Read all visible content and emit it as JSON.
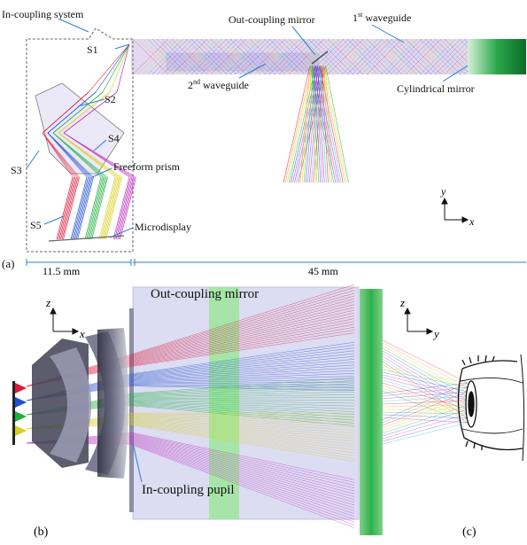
{
  "panel_a": {
    "panel_label": "(a)",
    "labels": {
      "in_coupling_system": "In-coupling system",
      "s1": "S1",
      "s2": "S2",
      "s3": "S3",
      "s4": "S4",
      "s5": "S5",
      "freeform_prism": "Freeform prism",
      "microdisplay": "Microdisplay",
      "out_coupling_mirror": "Out-coupling mirror",
      "first_waveguide_main": "1",
      "first_waveguide_sup": "st",
      "first_waveguide_rest": " waveguide",
      "second_waveguide_main": "2",
      "second_waveguide_sup": "nd",
      "second_waveguide_rest": " waveguide",
      "cylindrical_mirror": "Cylindrical mirror",
      "axis_y": "y",
      "axis_x": "x"
    },
    "dimensions": {
      "in_coupling_width": "11.5 mm",
      "waveguide_length": "45 mm"
    }
  },
  "panel_b": {
    "panel_label": "(b)",
    "labels": {
      "out_coupling_mirror": "Out-coupling mirror",
      "in_coupling_pupil": "In-coupling pupil",
      "axis_z": "z",
      "axis_x": "x"
    }
  },
  "panel_c": {
    "panel_label": "(c)",
    "labels": {
      "axis_z": "z",
      "axis_y": "y"
    }
  },
  "colors": {
    "leader": "#2a7fd4",
    "waveguide_fill": "#cfd0ee",
    "mirror_green": "#12a84a",
    "out_mirror_band": "#8fe88a",
    "ray_palette": [
      "#e0183a",
      "#f0a020",
      "#d8d020",
      "#20b040",
      "#2050d0",
      "#c030c0",
      "#6a3cc8",
      "#30b0c0"
    ]
  }
}
